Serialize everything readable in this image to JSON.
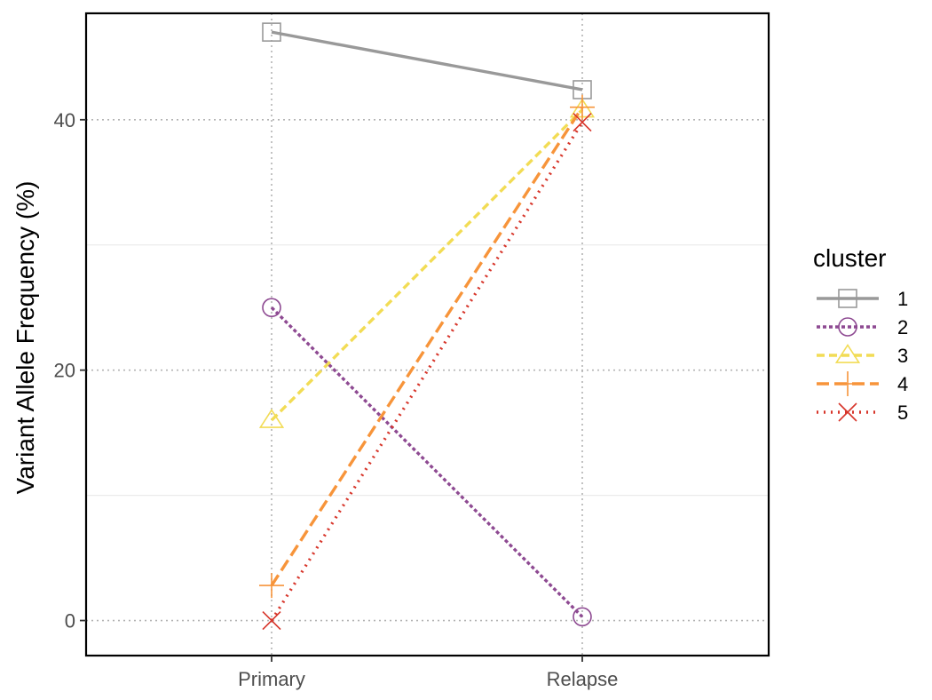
{
  "chart_data": {
    "type": "line",
    "categories": [
      "Primary",
      "Relapse"
    ],
    "ylabel": "Variant Allele Frequency (%)",
    "xlabel": "",
    "ylim": [
      -2.8,
      48.5
    ],
    "yticks": [
      0,
      20,
      40
    ],
    "grid": true,
    "legend": {
      "title": "cluster",
      "position": "right"
    },
    "series": [
      {
        "name": "1",
        "values": [
          47.0,
          42.4
        ],
        "color": "#999999",
        "dash": "solid",
        "marker": "square"
      },
      {
        "name": "2",
        "values": [
          25.0,
          0.3
        ],
        "color": "#8E4A92",
        "dash": "short-dash",
        "marker": "circle"
      },
      {
        "name": "3",
        "values": [
          16.0,
          40.8
        ],
        "color": "#F2DC55",
        "dash": "dash",
        "marker": "triangle"
      },
      {
        "name": "4",
        "values": [
          2.8,
          41.0
        ],
        "color": "#F7943A",
        "dash": "long-dash",
        "marker": "plus"
      },
      {
        "name": "5",
        "values": [
          0.0,
          39.8
        ],
        "color": "#D7352A",
        "dash": "dotted",
        "marker": "x"
      }
    ]
  }
}
